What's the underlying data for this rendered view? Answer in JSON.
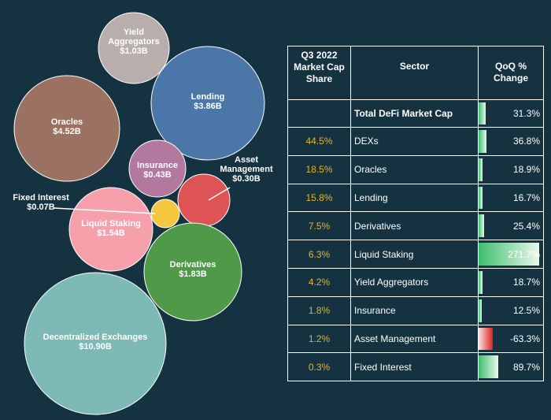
{
  "chart_data": [
    {
      "type": "bubble",
      "title": "",
      "unit": "$B",
      "bubbles": [
        {
          "label_lines": [
            "Yield",
            "Aggregators"
          ],
          "value_label": "$1.03B",
          "value": 1.03,
          "color": "#b9aeae",
          "label_color": "#ffffff"
        },
        {
          "label_lines": [
            "Lending"
          ],
          "value_label": "$3.86B",
          "value": 3.86,
          "color": "#4a77a8",
          "label_color": "#ffffff"
        },
        {
          "label_lines": [
            "Oracles"
          ],
          "value_label": "$4.52B",
          "value": 4.52,
          "color": "#9b7261",
          "label_color": "#ffffff"
        },
        {
          "label_lines": [
            "Insurance"
          ],
          "value_label": "$0.43B",
          "value": 0.43,
          "color": "#b2789e",
          "label_color": "#ffffff"
        },
        {
          "label_lines": [
            "Asset",
            "Management"
          ],
          "value_label": "$0.30B",
          "value": 0.3,
          "color": "#de5356",
          "label_color": "#ffffff"
        },
        {
          "label_lines": [
            "Fixed Interest"
          ],
          "value_label": "$0.07B",
          "value": 0.07,
          "color": "#f3c83e",
          "label_color": "#ffffff"
        },
        {
          "label_lines": [
            "Liquid Staking"
          ],
          "value_label": "$1.54B",
          "value": 1.54,
          "color": "#f6a0ac",
          "label_color": "#ffffff"
        },
        {
          "label_lines": [
            "Derivatives"
          ],
          "value_label": "$1.83B",
          "value": 1.83,
          "color": "#4e9a48",
          "label_color": "#ffffff"
        },
        {
          "label_lines": [
            "Decentralized Exchanges"
          ],
          "value_label": "$10.90B",
          "value": 10.9,
          "color": "#7dbab5",
          "label_color": "#ffffff"
        }
      ]
    },
    {
      "type": "table",
      "columns": [
        "Q3 2022 Market Cap Share",
        "Sector",
        "QoQ % Change"
      ],
      "header_share_lines": [
        "Q3 2022",
        "Market Cap",
        "Share"
      ],
      "rows": [
        {
          "share": "",
          "sector": "Total DeFi Market Cap",
          "change_label": "31.3%",
          "change": 31.3,
          "total": true
        },
        {
          "share": "44.5%",
          "sector": "DEXs",
          "change_label": "36.8%",
          "change": 36.8
        },
        {
          "share": "18.5%",
          "sector": "Oracles",
          "change_label": "18.9%",
          "change": 18.9
        },
        {
          "share": "15.8%",
          "sector": "Lending",
          "change_label": "16.7%",
          "change": 16.7
        },
        {
          "share": "7.5%",
          "sector": "Derivatives",
          "change_label": "25.4%",
          "change": 25.4
        },
        {
          "share": "6.3%",
          "sector": "Liquid Staking",
          "change_label": "271.7%",
          "change": 271.7
        },
        {
          "share": "4.2%",
          "sector": "Yield Aggregators",
          "change_label": "18.7%",
          "change": 18.7
        },
        {
          "share": "1.8%",
          "sector": "Insurance",
          "change_label": "12.5%",
          "change": 12.5
        },
        {
          "share": "1.2%",
          "sector": "Asset Management",
          "change_label": "-63.3%",
          "change": -63.3
        },
        {
          "share": "0.3%",
          "sector": "Fixed Interest",
          "change_label": "89.7%",
          "change": 89.7
        }
      ],
      "colors": {
        "share_text": "#e8b324",
        "positive_bar": "#3fbf6e",
        "negative_bar": "#e02020",
        "background": "#14323f"
      }
    }
  ]
}
